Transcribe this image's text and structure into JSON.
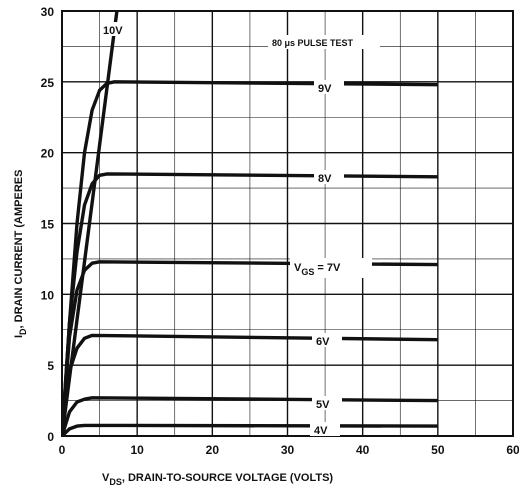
{
  "chart_data": {
    "type": "line",
    "x_label_main": "V",
    "x_label_sub": "DS",
    "x_label_rest": ", DRAIN-TO-SOURCE VOLTAGE (VOLTS)",
    "y_label_main": "I",
    "y_label_sub": "D",
    "y_label_rest": ", DRAIN CURRENT (AMPERES",
    "note": "80 μs PULSE TEST",
    "xlim": [
      0,
      60
    ],
    "ylim": [
      0,
      30
    ],
    "x_ticks": [
      0,
      10,
      20,
      30,
      40,
      50,
      60
    ],
    "y_ticks": [
      0,
      5,
      10,
      15,
      20,
      25,
      30
    ],
    "grid": true,
    "series": [
      {
        "name": "10V",
        "label": "10V",
        "points": [
          [
            0,
            0
          ],
          [
            7.3,
            30
          ]
        ]
      },
      {
        "name": "9V",
        "label": "9V",
        "points": [
          [
            0,
            0
          ],
          [
            1,
            8
          ],
          [
            2,
            15
          ],
          [
            3,
            20
          ],
          [
            4,
            23
          ],
          [
            5,
            24.4
          ],
          [
            6,
            24.9
          ],
          [
            7,
            25
          ],
          [
            50,
            24.8
          ]
        ]
      },
      {
        "name": "8V",
        "label": "8V",
        "points": [
          [
            0,
            0
          ],
          [
            1,
            8
          ],
          [
            2,
            13
          ],
          [
            3,
            16.3
          ],
          [
            4,
            17.8
          ],
          [
            5,
            18.4
          ],
          [
            6,
            18.5
          ],
          [
            50,
            18.3
          ]
        ]
      },
      {
        "name": "7V",
        "label_main": "V",
        "label_sub": "GS",
        "label_rest": " = 7V",
        "points": [
          [
            0,
            0
          ],
          [
            1,
            7
          ],
          [
            2,
            10.3
          ],
          [
            3,
            11.7
          ],
          [
            4,
            12.2
          ],
          [
            5,
            12.3
          ],
          [
            50,
            12.1
          ]
        ]
      },
      {
        "name": "6V",
        "label": "6V",
        "points": [
          [
            0,
            0
          ],
          [
            1,
            4.6
          ],
          [
            2,
            6.2
          ],
          [
            3,
            6.9
          ],
          [
            4,
            7.1
          ],
          [
            50,
            6.8
          ]
        ]
      },
      {
        "name": "5V",
        "label": "5V",
        "points": [
          [
            0,
            0
          ],
          [
            1,
            1.7
          ],
          [
            2,
            2.4
          ],
          [
            3,
            2.6
          ],
          [
            4,
            2.7
          ],
          [
            50,
            2.5
          ]
        ]
      },
      {
        "name": "4V",
        "label": "4V",
        "points": [
          [
            0,
            0
          ],
          [
            1,
            0.5
          ],
          [
            2,
            0.7
          ],
          [
            3,
            0.75
          ],
          [
            50,
            0.7
          ]
        ]
      }
    ]
  }
}
